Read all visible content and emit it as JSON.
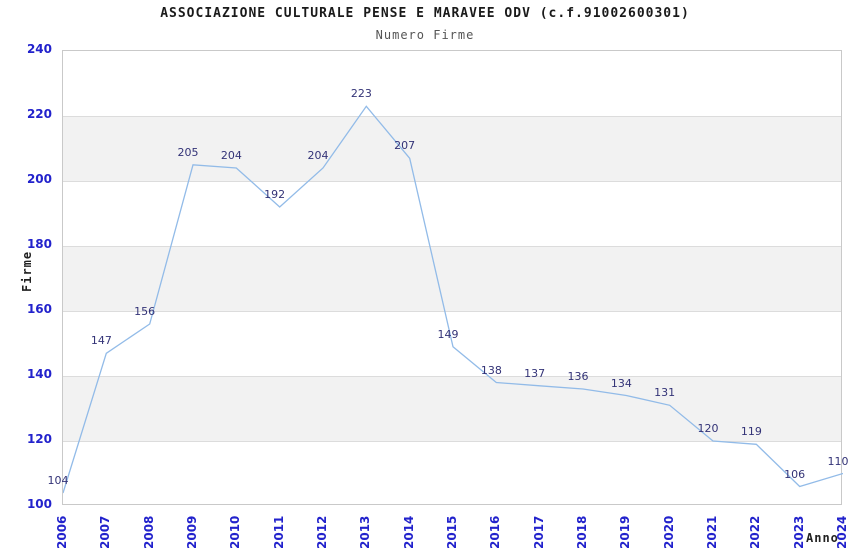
{
  "chart_data": {
    "type": "line",
    "title": "ASSOCIAZIONE CULTURALE PENSE E MARAVEE ODV (c.f.91002600301)",
    "subtitle": "Numero Firme",
    "xlabel": "Anno",
    "ylabel": "Firme",
    "categories": [
      "2006",
      "2007",
      "2008",
      "2009",
      "2010",
      "2011",
      "2012",
      "2013",
      "2014",
      "2015",
      "2016",
      "2017",
      "2018",
      "2019",
      "2020",
      "2021",
      "2022",
      "2023",
      "2024"
    ],
    "values": [
      104,
      147,
      156,
      205,
      204,
      192,
      204,
      223,
      207,
      149,
      138,
      137,
      136,
      134,
      131,
      120,
      119,
      106,
      110
    ],
    "ylim": [
      100,
      240
    ],
    "ytick_step": 20,
    "yticks": [
      100,
      120,
      140,
      160,
      180,
      200,
      220,
      240
    ],
    "grid": "horizontal gridlines with alternating shaded bands",
    "legend_position": "none",
    "colors": {
      "line": "#92bbe8",
      "tick_label": "#2222cc",
      "point_label": "#333377",
      "band": "#f2f2f2",
      "gridline": "#dcdcdc",
      "border": "#c9c9c9"
    }
  }
}
